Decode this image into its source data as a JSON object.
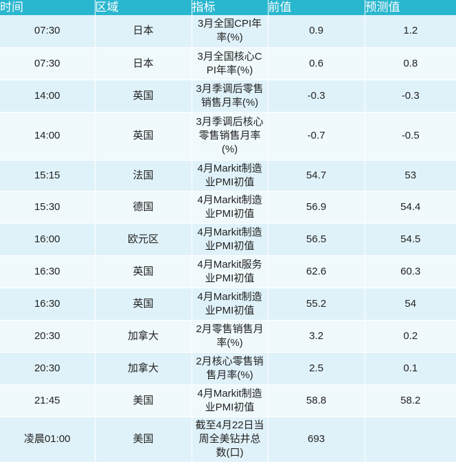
{
  "table": {
    "headers": {
      "time": "时间",
      "region": "区域",
      "indicator": "指标",
      "previous": "前值",
      "forecast": "预测值"
    },
    "rows": [
      {
        "time": "07:30",
        "region": "日本",
        "indicator": "3月全国CPI年率(%)",
        "previous": "0.9",
        "forecast": "1.2"
      },
      {
        "time": "07:30",
        "region": "日本",
        "indicator": "3月全国核心CPI年率(%)",
        "previous": "0.6",
        "forecast": "0.8"
      },
      {
        "time": "14:00",
        "region": "英国",
        "indicator": "3月季调后零售销售月率(%)",
        "previous": "-0.3",
        "forecast": "-0.3"
      },
      {
        "time": "14:00",
        "region": "英国",
        "indicator": "3月季调后核心零售销售月率(%)",
        "previous": "-0.7",
        "forecast": "-0.5"
      },
      {
        "time": "15:15",
        "region": "法国",
        "indicator": "4月Markit制造业PMI初值",
        "previous": "54.7",
        "forecast": "53"
      },
      {
        "time": "15:30",
        "region": "德国",
        "indicator": "4月Markit制造业PMI初值",
        "previous": "56.9",
        "forecast": "54.4"
      },
      {
        "time": "16:00",
        "region": "欧元区",
        "indicator": "4月Markit制造业PMI初值",
        "previous": "56.5",
        "forecast": "54.5"
      },
      {
        "time": "16:30",
        "region": "英国",
        "indicator": "4月Markit服务业PMI初值",
        "previous": "62.6",
        "forecast": "60.3"
      },
      {
        "time": "16:30",
        "region": "英国",
        "indicator": "4月Markit制造业PMI初值",
        "previous": "55.2",
        "forecast": "54"
      },
      {
        "time": "20:30",
        "region": "加拿大",
        "indicator": "2月零售销售月率(%)",
        "previous": "3.2",
        "forecast": "0.2"
      },
      {
        "time": "20:30",
        "region": "加拿大",
        "indicator": "2月核心零售销售月率(%)",
        "previous": "2.5",
        "forecast": "0.1"
      },
      {
        "time": "21:45",
        "region": "美国",
        "indicator": "4月Markit制造业PMI初值",
        "previous": "58.8",
        "forecast": "58.2"
      },
      {
        "time": "凌晨01:00",
        "region": "美国",
        "indicator": "截至4月22日当周全美钻井总数(口)",
        "previous": "693",
        "forecast": ""
      }
    ]
  }
}
